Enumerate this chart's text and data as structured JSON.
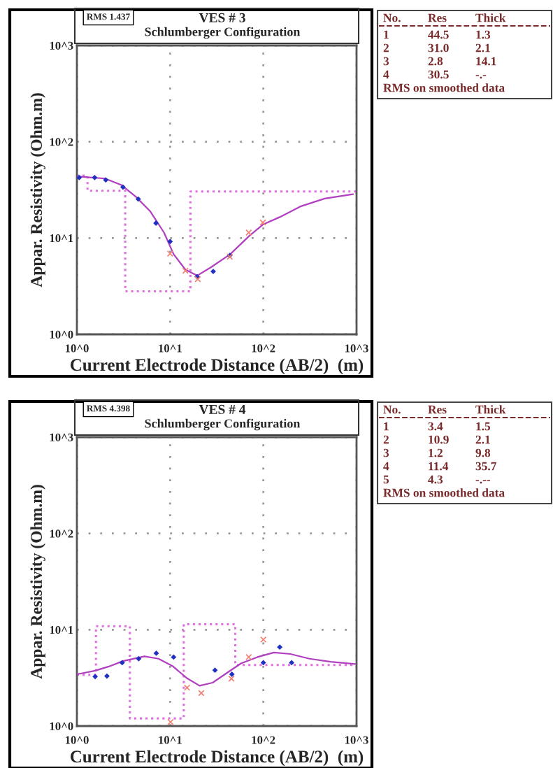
{
  "chart_data": [
    {
      "type": "scatter",
      "title": "VES # 3",
      "subtitle": "Schlumberger Configuration",
      "xlabel": "Current Electrode Distance (AB/2)  (m)",
      "ylabel": "Appar. Resistivity (Ohm.m)",
      "log": "xy",
      "grid": true,
      "xlim": [
        1,
        1000
      ],
      "ylim": [
        1,
        1000
      ],
      "xticks": [
        {
          "value": 1,
          "label": "10^0"
        },
        {
          "value": 10,
          "label": "10^1"
        },
        {
          "value": 100,
          "label": "10^2"
        },
        {
          "value": 1000,
          "label": "10^3"
        }
      ],
      "yticks": [
        {
          "value": 1,
          "label": "10^0"
        },
        {
          "value": 10,
          "label": "10^1"
        },
        {
          "value": 100,
          "label": "10^2"
        },
        {
          "value": 1000,
          "label": "10^3"
        }
      ],
      "series": [
        {
          "type": "step",
          "color": "#e070e0",
          "line_style": "dotted",
          "x": [
            1,
            1.3,
            3.3,
            16.5,
            1000
          ],
          "values": [
            44.5,
            31.0,
            2.8,
            30.5,
            30.5
          ]
        },
        {
          "type": "line",
          "color": "#b040c0",
          "line_style": "solid",
          "x": [
            1,
            2,
            3,
            4.3,
            6.1,
            8.6,
            10.9,
            14.6,
            19.5,
            27.7,
            44.2,
            70.5,
            100,
            150,
            254,
            455,
            916
          ],
          "values": [
            43.7,
            41.5,
            35.5,
            26.8,
            19,
            11.4,
            6.8,
            4.7,
            4.07,
            5.0,
            6.8,
            10.5,
            13.9,
            16.5,
            21.4,
            25.7,
            28.5
          ]
        },
        {
          "type": "scatter",
          "color": "#2030c0",
          "marker": "diamond",
          "x": [
            1.06,
            1.55,
            2.04,
            3.12,
            4.55,
            7.05,
            10,
            19.5,
            29,
            43.7
          ],
          "values": [
            42.5,
            42.5,
            40.1,
            33.8,
            25.4,
            14.3,
            9.2,
            3.96,
            4.5,
            6.6
          ]
        },
        {
          "type": "scatter",
          "color": "#f08070",
          "marker": "cross",
          "x": [
            10,
            14.6,
            19.8,
            43.7,
            69.7,
            98.9
          ],
          "values": [
            6.9,
            4.57,
            3.74,
            6.4,
            11.4,
            14.5
          ]
        }
      ],
      "annotations": [
        "RMS 1.437",
        "No.\tRes\tThick",
        "1\t44.5\t1.3",
        "2\t31.0\t2.1",
        "3\t2.8\t14.1",
        "4\t30.5\t-.-",
        "RMS on smoothed data"
      ]
    },
    {
      "type": "scatter",
      "title": "VES # 4",
      "subtitle": "Schlumberger Configuration",
      "xlabel": "Current Electrode Distance (AB/2)  (m)",
      "ylabel": "Appar. Resistivity (Ohm.m)",
      "log": "xy",
      "grid": true,
      "xlim": [
        1,
        1000
      ],
      "ylim": [
        1,
        1000
      ],
      "xticks": [
        {
          "value": 1,
          "label": "10^0"
        },
        {
          "value": 10,
          "label": "10^1"
        },
        {
          "value": 100,
          "label": "10^2"
        },
        {
          "value": 1000,
          "label": "10^3"
        }
      ],
      "yticks": [
        {
          "value": 1,
          "label": "10^0"
        },
        {
          "value": 10,
          "label": "10^1"
        },
        {
          "value": 100,
          "label": "10^2"
        },
        {
          "value": 1000,
          "label": "10^3"
        }
      ],
      "series": [
        {
          "type": "step",
          "color": "#e070e0",
          "line_style": "dotted",
          "x": [
            1,
            1.6,
            3.7,
            14,
            50,
            1000
          ],
          "values": [
            3.4,
            10.9,
            1.2,
            11.4,
            4.3,
            4.3
          ]
        },
        {
          "type": "line",
          "color": "#b040c0",
          "line_style": "solid",
          "x": [
            1,
            1.12,
            1.57,
            2.2,
            3.12,
            5.3,
            7.5,
            10.6,
            15,
            20.7,
            28.6,
            40.5,
            57.5,
            86.5,
            130,
            195,
            312,
            527,
            970
          ],
          "values": [
            3.45,
            3.52,
            3.76,
            4.15,
            4.73,
            5.3,
            5.0,
            4.2,
            3.16,
            2.62,
            2.82,
            3.55,
            4.47,
            5.2,
            5.8,
            5.6,
            5.0,
            4.65,
            4.4
          ]
        },
        {
          "type": "scatter",
          "color": "#2030c0",
          "marker": "diamond",
          "x": [
            1.57,
            2.1,
            3.06,
            4.6,
            7.1,
            10.9,
            30.3,
            46,
            100,
            150,
            201
          ],
          "values": [
            3.26,
            3.3,
            4.55,
            5.0,
            5.7,
            5.2,
            3.8,
            3.45,
            4.55,
            6.6,
            4.55
          ]
        },
        {
          "type": "scatter",
          "color": "#f08070",
          "marker": "cross",
          "x": [
            10.1,
            15.2,
            21.6,
            45.5,
            69.7,
            100
          ],
          "values": [
            1.1,
            2.5,
            2.2,
            3.1,
            5.2,
            7.9
          ]
        }
      ],
      "annotations": [
        "RMS 4.398",
        "No.\tRes\tThick",
        "1\t3.4\t1.5",
        "2\t10.9\t2.1",
        "3\t1.2\t9.8",
        "4\t11.4\t35.7",
        "5\t4.3\t-.--",
        "RMS on smoothed data"
      ]
    }
  ]
}
